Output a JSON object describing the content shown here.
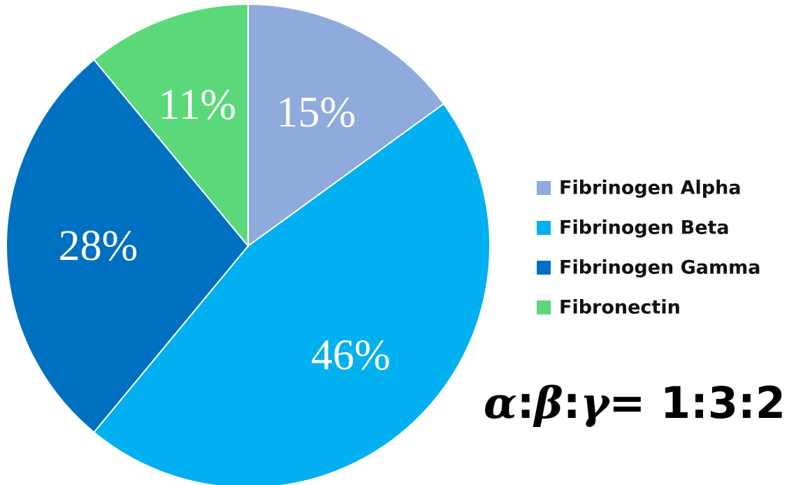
{
  "chart_data": {
    "type": "pie",
    "title": "",
    "categories": [
      "Fibrinogen Alpha",
      "Fibrinogen Beta",
      "Fibrinogen Gamma",
      "Fibronectin"
    ],
    "values": [
      15,
      46,
      28,
      11
    ],
    "labels": [
      "15%",
      "46%",
      "28%",
      "11%"
    ],
    "colors": [
      "#8faadc",
      "#00b0f0",
      "#0070c0",
      "#5bd97a"
    ],
    "legend_position": "right",
    "start_angle": "12 o'clock, clockwise"
  },
  "annotation": {
    "alpha": "α",
    "beta": "β",
    "gamma": "γ",
    "sep1": ":",
    "sep2": ":",
    "ratio": "= 1:3:2"
  }
}
